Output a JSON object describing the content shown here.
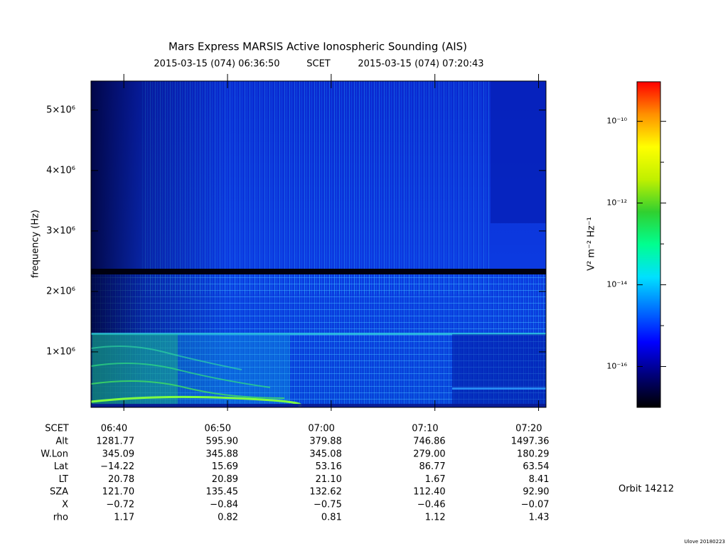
{
  "chart_data": {
    "type": "spectrogram",
    "title": "Mars Express MARSIS Active Ionospheric Sounding (AIS)",
    "time_system": "SCET",
    "xlim": [
      "2015-03-15 (074) 06:36:50",
      "2015-03-15 (074) 07:20:43"
    ],
    "xticks": [
      "06:40",
      "06:50",
      "07:00",
      "07:10",
      "07:20"
    ],
    "ylabel": "frequency (Hz)",
    "ylim": [
      82000,
      5480000
    ],
    "yticks": [
      {
        "value": 1000000,
        "label": "1×10⁶"
      },
      {
        "value": 2000000,
        "label": "2×10⁶"
      },
      {
        "value": 3000000,
        "label": "3×10⁶"
      },
      {
        "value": 4000000,
        "label": "4×10⁶"
      },
      {
        "value": 5000000,
        "label": "5×10⁶"
      }
    ],
    "colorbar": {
      "label": "V² m⁻² Hz⁻¹",
      "scale": "log",
      "lim": [
        1e-17,
        9.3e-10
      ],
      "ticks": [
        {
          "value": 1e-10,
          "label": "10⁻¹⁰"
        },
        {
          "value": 1e-12,
          "label": "10⁻¹²"
        },
        {
          "value": 1e-14,
          "label": "10⁻¹⁴"
        },
        {
          "value": 1e-16,
          "label": "10⁻¹⁶"
        }
      ],
      "minor_ticks": [
        1e-11,
        1e-13,
        1e-15
      ],
      "colors": [
        "#000000",
        "#00007a",
        "#0000ff",
        "#0070ff",
        "#00e0ff",
        "#00ff90",
        "#30d030",
        "#c0f000",
        "#ffff00",
        "#ff9000",
        "#ff0000"
      ]
    },
    "ephemeris": {
      "header": "SCET",
      "rows": [
        {
          "name": "Alt",
          "values": [
            "1281.77",
            "595.90",
            "379.88",
            "746.86",
            "1497.36"
          ]
        },
        {
          "name": "W.Lon",
          "values": [
            "345.09",
            "345.88",
            "345.08",
            "279.00",
            "180.29"
          ]
        },
        {
          "name": "Lat",
          "values": [
            "−14.22",
            "15.69",
            "53.16",
            "86.77",
            "63.54"
          ]
        },
        {
          "name": "LT",
          "values": [
            "20.78",
            "20.89",
            "21.10",
            "1.67",
            "8.41"
          ]
        },
        {
          "name": "SZA",
          "values": [
            "121.70",
            "135.45",
            "132.62",
            "112.40",
            "92.90"
          ]
        },
        {
          "name": "X",
          "values": [
            "−0.72",
            "−0.84",
            "−0.75",
            "−0.46",
            "−0.07"
          ]
        },
        {
          "name": "rho",
          "values": [
            "1.17",
            "0.82",
            "0.81",
            "1.12",
            "1.43"
          ]
        }
      ]
    },
    "orbit": "Orbit 14212",
    "credit": "Ulove 20180223"
  }
}
